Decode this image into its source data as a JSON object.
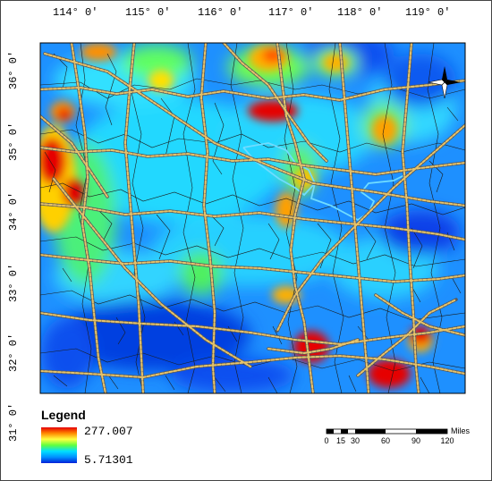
{
  "map": {
    "lon_labels": [
      "114° 0'",
      "115° 0'",
      "116° 0'",
      "117° 0'",
      "118° 0'",
      "119° 0'"
    ],
    "lat_labels": [
      "36° 0'",
      "35° 0'",
      "34° 0'",
      "33° 0'",
      "32° 0'",
      "31° 0'"
    ]
  },
  "legend": {
    "title": "Legend",
    "max_value": "277.007",
    "min_value": "5.71301",
    "ramp_colors": [
      "#e60000",
      "#ff8a00",
      "#ffff40",
      "#60ff40",
      "#00e0ff",
      "#0090ff",
      "#0020d8"
    ]
  },
  "scale_bar": {
    "labels": [
      "0",
      "15",
      "30",
      "60",
      "90",
      "120"
    ],
    "unit": "Miles"
  },
  "colors": {
    "background_field": "#1e8cff",
    "hotspot": "#e60000",
    "road": "#d4a93c",
    "highlight_boundary": "#5ad8ff"
  },
  "icons": {
    "north_arrow": "compass-rose-icon"
  }
}
